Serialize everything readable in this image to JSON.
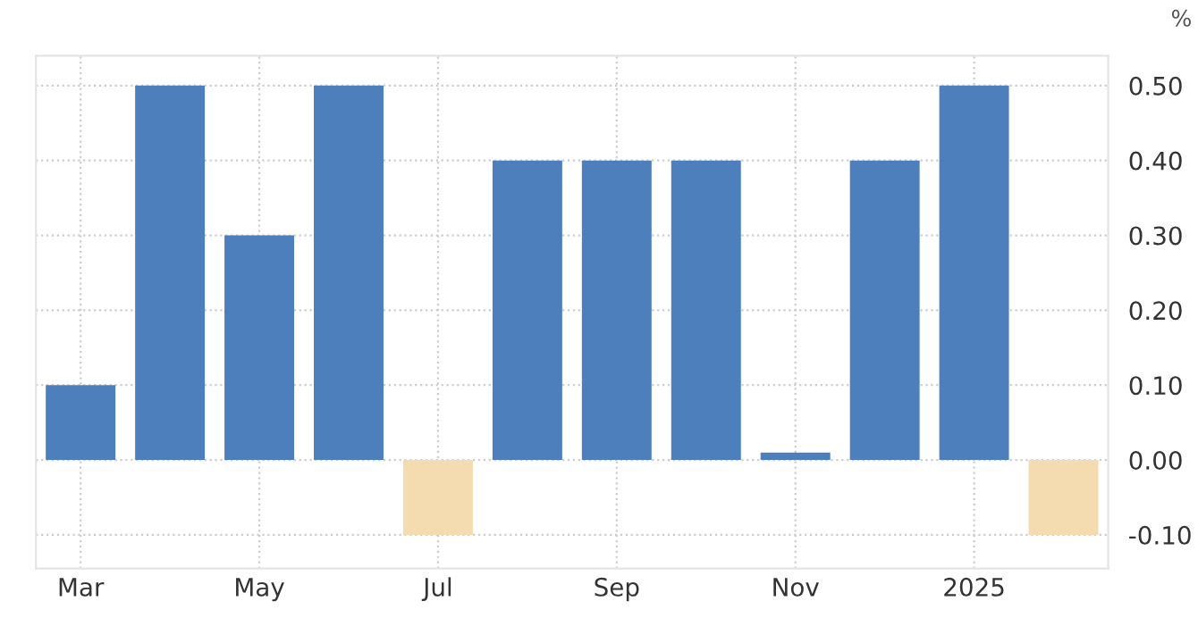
{
  "chart_data": {
    "type": "bar",
    "ylabel": "%",
    "categories": [
      "Mar",
      null,
      "May",
      null,
      "Jul",
      null,
      "Sep",
      null,
      "Nov",
      null,
      "2025",
      null
    ],
    "values": [
      0.1,
      0.5,
      0.3,
      0.5,
      -0.1,
      0.4,
      0.4,
      0.4,
      0.01,
      0.4,
      0.5,
      -0.1
    ],
    "colors": [
      "#4d7fbd",
      "#4d7fbd",
      "#4d7fbd",
      "#4d7fbd",
      "#f5dcb0",
      "#4d7fbd",
      "#4d7fbd",
      "#4d7fbd",
      "#4d7fbd",
      "#4d7fbd",
      "#4d7fbd",
      "#f5dcb0"
    ],
    "ylim": [
      -0.145,
      0.54
    ],
    "yticks": [
      {
        "value": -0.1,
        "label": "-0.10"
      },
      {
        "value": 0,
        "label": "0.00"
      },
      {
        "value": 0.1,
        "label": "0.10"
      },
      {
        "value": 0.2,
        "label": "0.20"
      },
      {
        "value": 0.3,
        "label": "0.30"
      },
      {
        "value": 0.4,
        "label": "0.40"
      },
      {
        "value": 0.5,
        "label": "0.50"
      }
    ],
    "grid": true
  }
}
